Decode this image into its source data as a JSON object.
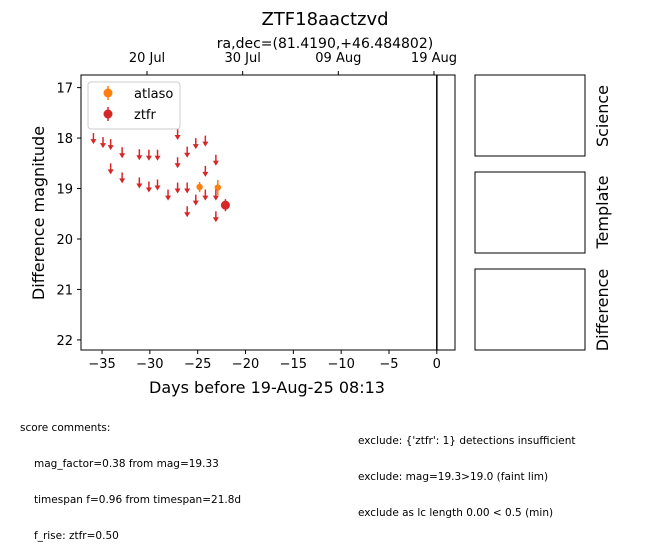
{
  "title": "ZTF18aactzvd",
  "subtitle": "ra,dec=(81.4190,+46.484802)",
  "chart_data": {
    "type": "scatter",
    "xlabel": "Days before 19-Aug-25 08:13",
    "ylabel": "Difference magnitude",
    "xlim": [
      -37.2,
      1.9
    ],
    "ylim": [
      22.2,
      16.75
    ],
    "y_inverted": true,
    "grid": false,
    "legend_position": "upper-left",
    "xticks": [
      -35,
      -30,
      -25,
      -20,
      -15,
      -10,
      -5,
      0
    ],
    "xtick_labels": [
      "−35",
      "−30",
      "−25",
      "−20",
      "−15",
      "−10",
      "−5",
      "0"
    ],
    "yticks": [
      17,
      18,
      19,
      20,
      21,
      22
    ],
    "ytick_labels": [
      "17",
      "18",
      "19",
      "20",
      "21",
      "22"
    ],
    "top_axis_ticks": [
      {
        "label": "20 Jul",
        "x": -30.3
      },
      {
        "label": "30 Jul",
        "x": -20.3
      },
      {
        "label": "09 Aug",
        "x": -10.3
      },
      {
        "label": "19 Aug",
        "x": -0.3
      }
    ],
    "vline_x": 0,
    "series": [
      {
        "name": "atlaso",
        "color": "#ff7f0e",
        "detections": [
          {
            "x": -24.8,
            "y": 18.97,
            "err": 0.1
          },
          {
            "x": -22.9,
            "y": 18.98,
            "err": 0.15
          }
        ],
        "upper_limits": []
      },
      {
        "name": "ztfr",
        "color": "#d62728",
        "detections": [
          {
            "x": -22.1,
            "y": 19.33,
            "err": 0.12
          }
        ],
        "upper_limits": [
          {
            "x": -35.9,
            "y": 18.0
          },
          {
            "x": -34.9,
            "y": 18.08
          },
          {
            "x": -34.1,
            "y": 18.12
          },
          {
            "x": -32.9,
            "y": 18.28
          },
          {
            "x": -31.1,
            "y": 18.32
          },
          {
            "x": -30.1,
            "y": 18.33
          },
          {
            "x": -29.2,
            "y": 18.33
          },
          {
            "x": -27.1,
            "y": 17.92
          },
          {
            "x": -27.1,
            "y": 18.48
          },
          {
            "x": -26.1,
            "y": 18.27
          },
          {
            "x": -25.2,
            "y": 18.1
          },
          {
            "x": -24.2,
            "y": 18.05
          },
          {
            "x": -23.1,
            "y": 18.43
          },
          {
            "x": -34.1,
            "y": 18.6
          },
          {
            "x": -32.9,
            "y": 18.78
          },
          {
            "x": -31.1,
            "y": 18.88
          },
          {
            "x": -30.1,
            "y": 18.96
          },
          {
            "x": -29.2,
            "y": 18.92
          },
          {
            "x": -28.1,
            "y": 19.12
          },
          {
            "x": -27.1,
            "y": 18.98
          },
          {
            "x": -26.1,
            "y": 18.98
          },
          {
            "x": -25.2,
            "y": 19.22
          },
          {
            "x": -24.2,
            "y": 19.12
          },
          {
            "x": -23.1,
            "y": 19.12
          },
          {
            "x": -24.2,
            "y": 18.65
          },
          {
            "x": -26.1,
            "y": 19.45
          },
          {
            "x": -23.1,
            "y": 19.55
          }
        ]
      }
    ]
  },
  "side_panels": [
    "Science",
    "Template",
    "Difference"
  ],
  "comments": {
    "header": "score comments:",
    "lines": [
      "mag_factor=0.38 from mag=19.33",
      "timespan f=0.96 from timespan=21.8d",
      "f_rise: ztfr=0.50"
    ],
    "right_lines": [
      "exclude: {'ztfr': 1} detections insufficient",
      "exclude: mag=19.3>19.0 (faint lim)",
      "exclude as lc length 0.00 < 0.5 (min)"
    ]
  }
}
